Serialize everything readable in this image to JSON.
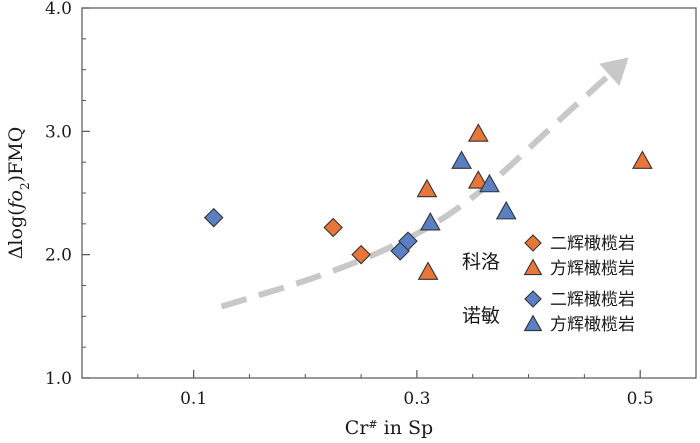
{
  "chart_data": {
    "type": "scatter",
    "title": "",
    "xlabel_main": "Cr",
    "xlabel_sup": "#",
    "xlabel_rest": " in Sp",
    "ylabel_prefix": "Δlog(",
    "ylabel_italic": "f",
    "ylabel_o": "o",
    "ylabel_sub": "2",
    "ylabel_suffix": ")FMQ",
    "xlim": [
      0.0,
      0.55
    ],
    "ylim": [
      1.0,
      4.0
    ],
    "xticks": [
      "0.1",
      "0.3",
      "0.5"
    ],
    "xtick_values": [
      0.1,
      0.3,
      0.5
    ],
    "yticks": [
      "1.0",
      "2.0",
      "3.0",
      "4.0"
    ],
    "ytick_values": [
      1.0,
      2.0,
      3.0,
      4.0
    ],
    "yminor_step": 0.25,
    "xminor_step": 0.05,
    "colors": {
      "orange": "#e8753a",
      "blue": "#5b7fc3",
      "arrow": "#c8c8c8",
      "axis": "#555555"
    },
    "series": [
      {
        "group": "科洛",
        "name": "二辉橄榄岩",
        "marker": "diamond",
        "color": "orange",
        "points": [
          {
            "x": 0.225,
            "y": 2.22
          },
          {
            "x": 0.25,
            "y": 2.0
          }
        ]
      },
      {
        "group": "科洛",
        "name": "方辉橄榄岩",
        "marker": "triangle",
        "color": "orange",
        "points": [
          {
            "x": 0.309,
            "y": 2.53
          },
          {
            "x": 0.31,
            "y": 1.86
          },
          {
            "x": 0.355,
            "y": 2.98
          },
          {
            "x": 0.355,
            "y": 2.6
          },
          {
            "x": 0.502,
            "y": 2.76
          }
        ]
      },
      {
        "group": "诺敏",
        "name": "二辉橄榄岩",
        "marker": "diamond",
        "color": "blue",
        "points": [
          {
            "x": 0.118,
            "y": 2.3
          },
          {
            "x": 0.285,
            "y": 2.03
          },
          {
            "x": 0.292,
            "y": 2.11
          }
        ]
      },
      {
        "group": "诺敏",
        "name": "方辉橄榄岩",
        "marker": "triangle",
        "color": "blue",
        "points": [
          {
            "x": 0.312,
            "y": 2.26
          },
          {
            "x": 0.34,
            "y": 2.76
          },
          {
            "x": 0.365,
            "y": 2.57
          },
          {
            "x": 0.38,
            "y": 2.35
          }
        ]
      }
    ],
    "trend_arrow": {
      "points": [
        {
          "x": 0.125,
          "y": 1.58
        },
        {
          "x": 0.22,
          "y": 1.84
        },
        {
          "x": 0.3,
          "y": 2.15
        },
        {
          "x": 0.36,
          "y": 2.52
        },
        {
          "x": 0.42,
          "y": 3.03
        },
        {
          "x": 0.475,
          "y": 3.48
        }
      ]
    },
    "legend": {
      "placement": "lower-right",
      "groups": [
        {
          "label": "科洛",
          "entries": [
            {
              "marker": "diamond",
              "color": "orange",
              "label": "二辉橄榄岩"
            },
            {
              "marker": "triangle",
              "color": "orange",
              "label": "方辉橄榄岩"
            }
          ]
        },
        {
          "label": "诺敏",
          "entries": [
            {
              "marker": "diamond",
              "color": "blue",
              "label": "二辉橄榄岩"
            },
            {
              "marker": "triangle",
              "color": "blue",
              "label": "方辉橄榄岩"
            }
          ]
        }
      ]
    }
  }
}
